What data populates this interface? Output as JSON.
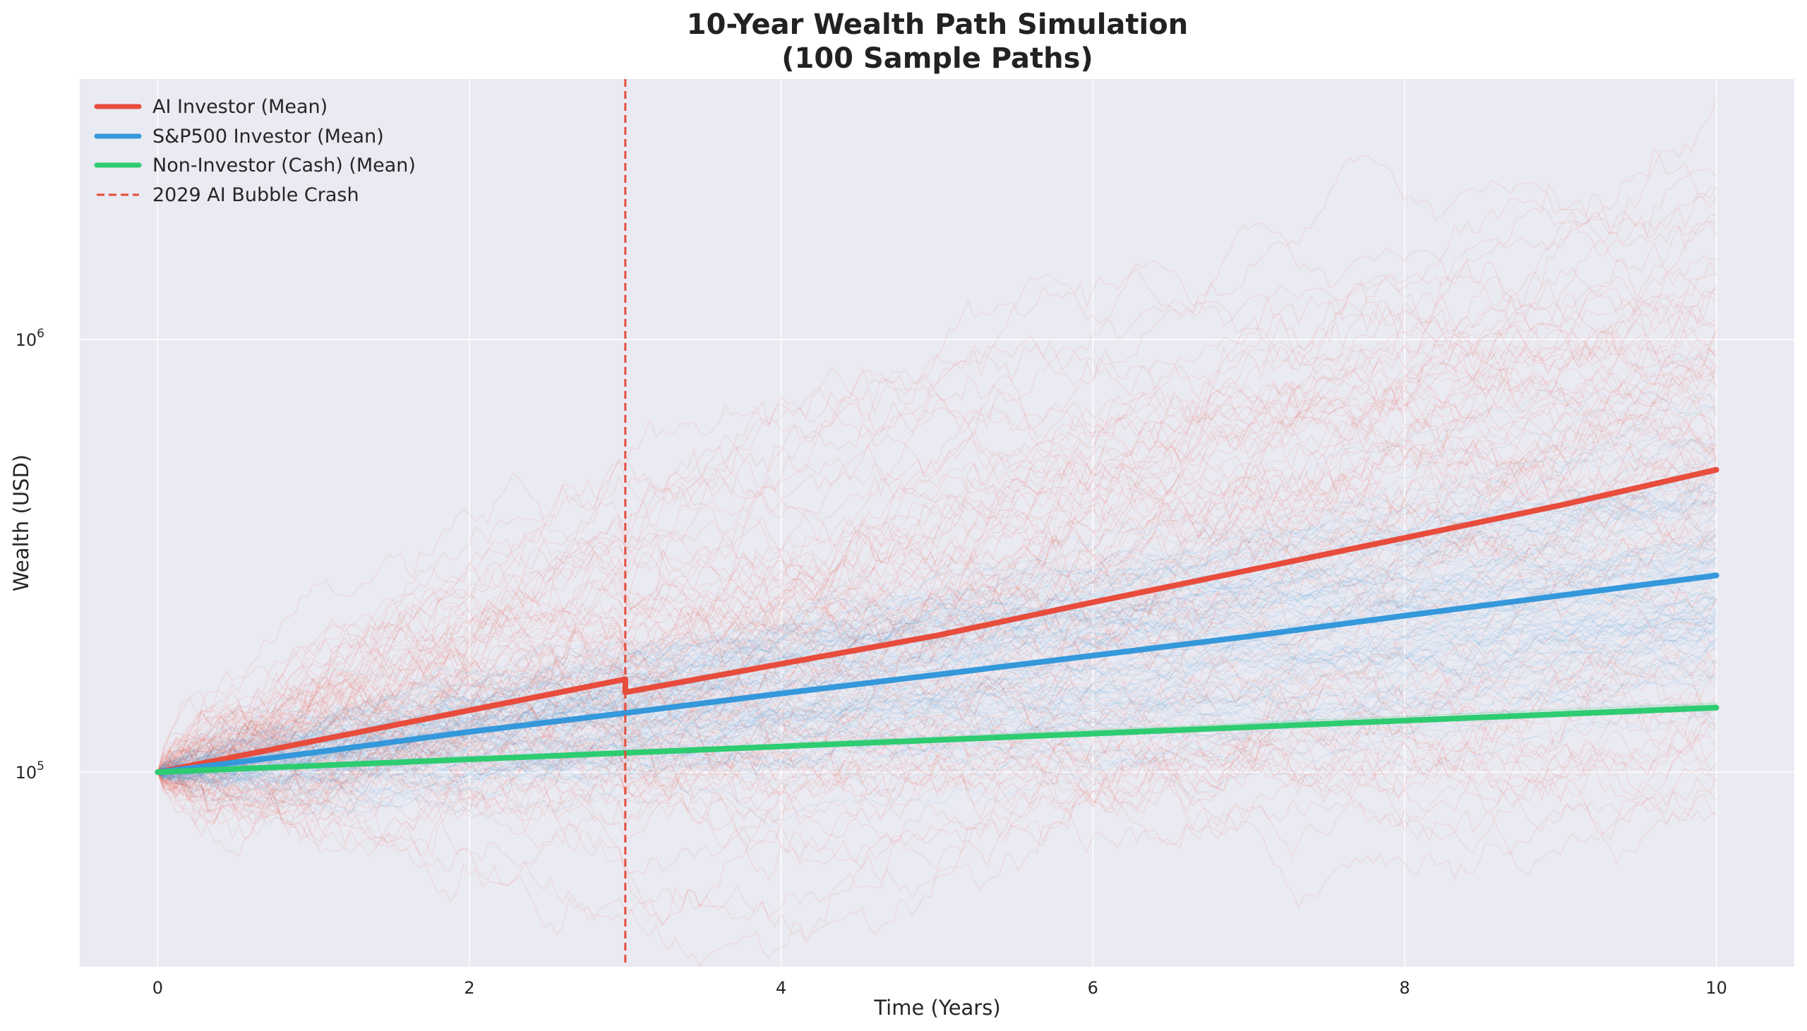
{
  "chart_data": {
    "type": "line",
    "title": "10-Year Wealth Path Simulation",
    "subtitle": "(100 Sample Paths)",
    "xlabel": "Time (Years)",
    "ylabel": "Wealth (USD)",
    "xlim": [
      -0.5,
      10.5
    ],
    "ylim": [
      35500,
      4000000
    ],
    "yscale": "log",
    "grid": true,
    "legend_position": "top-left",
    "background_color": "#eaeaf2",
    "x_ticks": [
      {
        "value": 0,
        "label": "0"
      },
      {
        "value": 2,
        "label": "2"
      },
      {
        "value": 4,
        "label": "4"
      },
      {
        "value": 6,
        "label": "6"
      },
      {
        "value": 8,
        "label": "8"
      },
      {
        "value": 10,
        "label": "10"
      }
    ],
    "y_ticks": [
      {
        "value": 100000,
        "base": "10",
        "exp": "5"
      },
      {
        "value": 1000000,
        "base": "10",
        "exp": "6"
      }
    ],
    "sample_paths": {
      "count_per_group": 100,
      "groups": [
        {
          "name": "AI Investor",
          "color": "#e74c3c",
          "start": 100000,
          "mean_end": 500000,
          "crash_year": 3,
          "crash_size": 0.07
        },
        {
          "name": "S&P500 Investor",
          "color": "#3498db",
          "start": 100000,
          "mean_end": 285000
        },
        {
          "name": "Non-Investor (Cash)",
          "color": "#2ecc71",
          "start": 100000,
          "mean_end": 141000
        }
      ]
    },
    "series": [
      {
        "name": "AI Investor (Mean)",
        "color": "#e74c3c",
        "style": "solid",
        "x": [
          0,
          1,
          2,
          3,
          3,
          4,
          5,
          6,
          7,
          8,
          9,
          10
        ],
        "y": [
          100000,
          118000,
          139000,
          164000,
          153000,
          178000,
          207000,
          247000,
          293000,
          348000,
          414000,
          500000
        ]
      },
      {
        "name": "S&P500 Investor (Mean)",
        "color": "#3498db",
        "style": "solid",
        "x": [
          0,
          1,
          2,
          3,
          4,
          5,
          6,
          7,
          8,
          9,
          10
        ],
        "y": [
          100000,
          111000,
          124000,
          137000,
          152000,
          168000,
          186000,
          206000,
          230000,
          256000,
          285000
        ]
      },
      {
        "name": "Non-Investor (Cash)",
        "color": "#2ecc71",
        "style": "solid",
        "x": [
          0,
          1,
          2,
          3,
          4,
          5,
          6,
          7,
          8,
          9,
          10
        ],
        "y": [
          100000,
          103500,
          107100,
          110800,
          114700,
          118700,
          122800,
          127100,
          131600,
          136200,
          141000
        ]
      }
    ],
    "annotations": [
      {
        "name": "2029 AI Bubble Crash",
        "type": "vline",
        "x": 3,
        "color": "#e74c3c",
        "style": "dashed"
      }
    ],
    "legend": [
      {
        "label": "AI Investor (Mean)",
        "color": "#e74c3c",
        "style": "solid"
      },
      {
        "label": "S&P500 Investor (Mean)",
        "color": "#3498db",
        "style": "solid"
      },
      {
        "label": "Non-Investor (Cash) (Mean)",
        "color": "#2ecc71",
        "style": "solid"
      },
      {
        "label": "2029 AI Bubble Crash",
        "color": "#e74c3c",
        "style": "dashed"
      }
    ]
  }
}
